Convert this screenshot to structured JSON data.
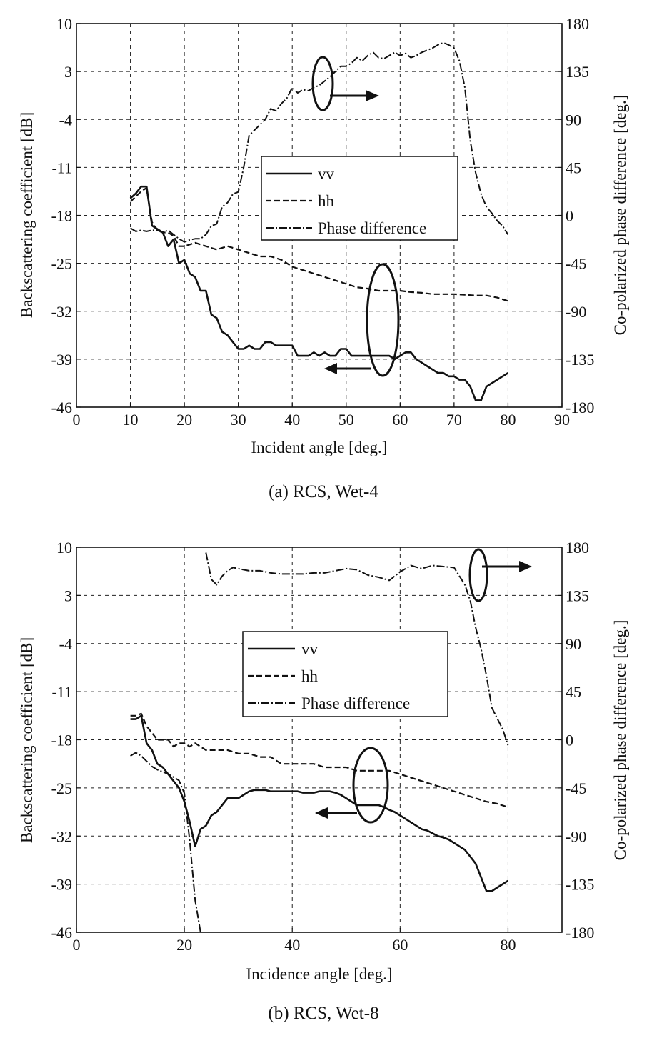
{
  "chart_data": [
    {
      "type": "line",
      "caption": "(a) RCS, Wet-4",
      "xlabel": "Incident angle [deg.]",
      "ylabel": "Backscattering coefficient [dB]",
      "y2label": "Co-polarized phase difference [deg.]",
      "xlim": [
        0,
        90
      ],
      "ylim": [
        -46,
        10
      ],
      "y2lim": [
        -180,
        180
      ],
      "xticks": [
        "0",
        "10",
        "20",
        "30",
        "40",
        "50",
        "60",
        "70",
        "80",
        "90"
      ],
      "yticks": [
        "10",
        "3",
        "-4",
        "-11",
        "-18",
        "-25",
        "-32",
        "-39",
        "-46"
      ],
      "y2ticks": [
        "180",
        "135",
        "90",
        "45",
        "0",
        "-45",
        "-90",
        "-135",
        "-180"
      ],
      "legend": {
        "position": "center",
        "entries": [
          "vv",
          "hh",
          "Phase difference"
        ]
      },
      "series": [
        {
          "name": "vv",
          "axis": "left",
          "style": "solid",
          "x": [
            10,
            11,
            12,
            13,
            14,
            15,
            16,
            17,
            18,
            19,
            20,
            21,
            22,
            23,
            24,
            25,
            26,
            27,
            28,
            29,
            30,
            31,
            32,
            33,
            34,
            35,
            36,
            37,
            38,
            39,
            40,
            41,
            42,
            43,
            44,
            45,
            46,
            47,
            48,
            49,
            50,
            51,
            52,
            53,
            54,
            55,
            56,
            57,
            58,
            59,
            60,
            61,
            62,
            63,
            64,
            65,
            66,
            67,
            68,
            69,
            70,
            71,
            72,
            73,
            74,
            75,
            76,
            77,
            78,
            79,
            80
          ],
          "y": [
            -15.5,
            -14.8,
            -13.8,
            -13.8,
            -19.5,
            -20,
            -20.5,
            -22.5,
            -21.5,
            -25,
            -24.5,
            -26.5,
            -27,
            -29,
            -29,
            -32.5,
            -33,
            -35,
            -35.5,
            -36.5,
            -37.5,
            -37.5,
            -37,
            -37.5,
            -37.5,
            -36.5,
            -36.5,
            -37,
            -37,
            -37,
            -37,
            -38.5,
            -38.5,
            -38.5,
            -38,
            -38.5,
            -38,
            -38.5,
            -38.5,
            -37.5,
            -37.5,
            -38.5,
            -38.5,
            -38.5,
            -38.5,
            -38.5,
            -38.5,
            -38.5,
            -38.5,
            -39,
            -38.5,
            -38,
            -38,
            -39,
            -39.5,
            -40,
            -40.5,
            -41,
            -41,
            -41.5,
            -41.5,
            -42,
            -42,
            -43,
            -45,
            -45,
            -43,
            -42.5,
            -42,
            -41.5,
            -41
          ]
        },
        {
          "name": "hh",
          "axis": "left",
          "style": "dashed",
          "x": [
            10,
            12,
            13,
            14,
            15,
            16,
            17,
            18,
            19,
            20,
            22,
            24,
            26,
            28,
            30,
            32,
            34,
            36,
            38,
            40,
            42,
            44,
            46,
            48,
            50,
            52,
            54,
            56,
            58,
            60,
            62,
            64,
            66,
            68,
            70,
            72,
            74,
            76,
            78,
            80
          ],
          "y": [
            -16,
            -14.5,
            -14,
            -19,
            -20.2,
            -20.5,
            -20.5,
            -21,
            -22.5,
            -22.5,
            -22,
            -22.5,
            -23,
            -22.5,
            -23,
            -23.5,
            -24,
            -24,
            -24.5,
            -25.5,
            -26,
            -26.5,
            -27,
            -27.5,
            -28,
            -28.5,
            -28.7,
            -29,
            -29,
            -29,
            -29.2,
            -29.3,
            -29.5,
            -29.5,
            -29.5,
            -29.6,
            -29.7,
            -29.7,
            -30,
            -30.5
          ]
        },
        {
          "name": "Phase difference",
          "axis": "right",
          "style": "dashdot",
          "x": [
            10,
            11,
            12,
            13,
            14,
            15,
            16,
            17,
            18,
            19,
            20,
            21,
            22,
            23,
            24,
            25,
            26,
            27,
            28,
            29,
            30,
            31,
            32,
            33,
            34,
            35,
            36,
            37,
            38,
            39,
            40,
            41,
            42,
            43,
            44,
            45,
            46,
            47,
            48,
            49,
            50,
            51,
            52,
            53,
            54,
            55,
            56,
            57,
            58,
            59,
            60,
            61,
            62,
            63,
            64,
            65,
            66,
            67,
            68,
            69,
            70,
            71,
            72,
            73,
            74,
            75,
            76,
            77,
            78,
            79,
            80
          ],
          "y": [
            -12,
            -15,
            -14,
            -15,
            -14,
            -14,
            -16,
            -14,
            -18,
            -22,
            -25,
            -23,
            -22,
            -22,
            -18,
            -10,
            -8,
            8,
            12,
            20,
            22,
            45,
            75,
            80,
            85,
            90,
            100,
            98,
            105,
            110,
            120,
            115,
            118,
            117,
            120,
            122,
            126,
            130,
            135,
            140,
            140,
            143,
            148,
            145,
            150,
            153,
            148,
            147,
            150,
            153,
            150,
            152,
            148,
            150,
            153,
            155,
            157,
            160,
            162,
            160,
            157,
            145,
            120,
            70,
            40,
            20,
            8,
            2,
            -5,
            -10,
            -18
          ]
        }
      ]
    },
    {
      "type": "line",
      "caption": "(b) RCS, Wet-8",
      "xlabel": "Incidence angle [deg.]",
      "ylabel": "Backscattering coefficient [dB]",
      "y2label": "Co-polarized phase difference [deg.]",
      "xlim": [
        0,
        90
      ],
      "ylim": [
        -46,
        10
      ],
      "y2lim": [
        -180,
        180
      ],
      "xticks": [
        "0",
        "20",
        "40",
        "60",
        "80"
      ],
      "yticks": [
        "10",
        "3",
        "-4",
        "-11",
        "-18",
        "-25",
        "-32",
        "-39",
        "-46"
      ],
      "y2ticks": [
        "180",
        "135",
        "90",
        "45",
        "0",
        "-45",
        "-90",
        "-135",
        "-180"
      ],
      "legend": {
        "position": "top-center",
        "entries": [
          "vv",
          "hh",
          "Phase difference"
        ]
      },
      "series": [
        {
          "name": "vv",
          "axis": "left",
          "style": "solid",
          "x": [
            10,
            11,
            12,
            13,
            14,
            15,
            16,
            17,
            18,
            19,
            20,
            21,
            22,
            23,
            24,
            25,
            26,
            27,
            28,
            29,
            30,
            31,
            32,
            33,
            34,
            35,
            36,
            37,
            38,
            39,
            40,
            41,
            42,
            43,
            44,
            45,
            46,
            47,
            48,
            49,
            50,
            51,
            52,
            53,
            54,
            55,
            56,
            57,
            58,
            59,
            60,
            61,
            62,
            63,
            64,
            65,
            66,
            67,
            68,
            69,
            70,
            71,
            72,
            73,
            74,
            75,
            76,
            77,
            78,
            79,
            80
          ],
          "y": [
            -15,
            -15,
            -14.5,
            -18.5,
            -19.5,
            -21.5,
            -22,
            -23,
            -24,
            -25,
            -27,
            -30,
            -33.5,
            -31,
            -30.5,
            -29,
            -28.5,
            -27.5,
            -26.5,
            -26.5,
            -26.5,
            -26,
            -25.5,
            -25.3,
            -25.3,
            -25.3,
            -25.5,
            -25.5,
            -25.5,
            -25.5,
            -25.5,
            -25.5,
            -25.7,
            -25.7,
            -25.7,
            -25.5,
            -25.5,
            -25.5,
            -25.7,
            -26,
            -26.5,
            -27,
            -27.5,
            -27.5,
            -27.5,
            -27.5,
            -27.5,
            -27.8,
            -28.2,
            -28.5,
            -29,
            -29.5,
            -30,
            -30.5,
            -31,
            -31.2,
            -31.6,
            -32,
            -32.2,
            -32.5,
            -33,
            -33.5,
            -34,
            -35,
            -36,
            -38,
            -40,
            -40,
            -39.5,
            -39,
            -38.5
          ]
        },
        {
          "name": "hh",
          "axis": "left",
          "style": "dashed",
          "x": [
            10,
            11,
            12,
            13,
            14,
            15,
            16,
            17,
            18,
            19,
            20,
            21,
            22,
            23,
            24,
            26,
            28,
            30,
            32,
            34,
            36,
            38,
            40,
            42,
            44,
            46,
            48,
            50,
            52,
            54,
            56,
            58,
            60,
            62,
            64,
            66,
            68,
            70,
            72,
            74,
            76,
            78,
            80
          ],
          "y": [
            -14.5,
            -14.5,
            -14.2,
            -16,
            -17,
            -18,
            -18,
            -18,
            -19,
            -18.5,
            -18.5,
            -19,
            -18.5,
            -19,
            -19.5,
            -19.5,
            -19.5,
            -20,
            -20,
            -20.5,
            -20.5,
            -21.5,
            -21.5,
            -21.5,
            -21.5,
            -22,
            -22,
            -22,
            -22.5,
            -22.5,
            -22.5,
            -22.5,
            -23,
            -23.5,
            -24,
            -24.5,
            -25,
            -25.5,
            -26,
            -26.5,
            -27,
            -27.3,
            -27.8
          ]
        },
        {
          "name": "Phase difference",
          "axis": "right",
          "style": "dashdot",
          "x": [
            10,
            11,
            12,
            13,
            14,
            15,
            16,
            17,
            18,
            19,
            20,
            21,
            22,
            23
          ],
          "y": [
            -15,
            -12,
            -15,
            -20,
            -25,
            -28,
            -30,
            -32,
            -35,
            -38,
            -50,
            -95,
            -150,
            -180
          ]
        },
        {
          "name": "Phase difference",
          "axis": "right",
          "style": "dashdot",
          "x": [
            24,
            25,
            26,
            27,
            28,
            29,
            30,
            32,
            34,
            36,
            38,
            40,
            42,
            44,
            46,
            48,
            50,
            52,
            54,
            56,
            58,
            60,
            62,
            64,
            66,
            68,
            70,
            72,
            73,
            74,
            75,
            76,
            77,
            78,
            79,
            80
          ],
          "y": [
            175,
            150,
            145,
            153,
            158,
            161,
            160,
            158,
            158,
            156,
            155,
            155,
            155,
            156,
            156,
            158,
            160,
            159,
            154,
            152,
            149,
            157,
            163,
            160,
            163,
            162,
            161,
            145,
            130,
            105,
            85,
            60,
            30,
            20,
            10,
            -5
          ]
        }
      ]
    }
  ]
}
